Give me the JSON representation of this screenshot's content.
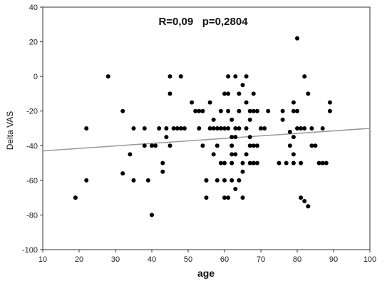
{
  "chart_data": {
    "type": "scatter",
    "title": "",
    "annotation": "R=0,09   p=0,2804",
    "xlabel": "age",
    "ylabel": "Delta VAS",
    "xlim": [
      10,
      100
    ],
    "ylim": [
      -100,
      40
    ],
    "x_ticks": [
      10,
      20,
      30,
      40,
      50,
      60,
      70,
      80,
      90,
      100
    ],
    "y_ticks": [
      40,
      20,
      0,
      -20,
      -40,
      -60,
      -80,
      -100
    ],
    "grid": false,
    "legend": "none",
    "colors": {
      "points": "#000000",
      "trend_line": "#999999",
      "axes": "#333333"
    },
    "trend_line": {
      "x": [
        10,
        100
      ],
      "y": [
        -43,
        -30
      ]
    },
    "series": [
      {
        "x": [
          19,
          22,
          22,
          28,
          32,
          32,
          34,
          35,
          35,
          38,
          38,
          39,
          40,
          40,
          41,
          42,
          43,
          43,
          44,
          44,
          45,
          45,
          45,
          46,
          47,
          48,
          48,
          49,
          51,
          52,
          53,
          53,
          54,
          54,
          55,
          55,
          55,
          56,
          56,
          57,
          57,
          57,
          58,
          58,
          58,
          59,
          59,
          59,
          60,
          60,
          60,
          60,
          60,
          61,
          61,
          61,
          61,
          61,
          62,
          62,
          62,
          62,
          62,
          62,
          63,
          63,
          63,
          63,
          63,
          64,
          64,
          64,
          64,
          65,
          65,
          65,
          65,
          66,
          66,
          66,
          66,
          67,
          67,
          67,
          67,
          67,
          68,
          68,
          68,
          68,
          68,
          69,
          69,
          69,
          70,
          71,
          72,
          75,
          76,
          76,
          77,
          78,
          78,
          79,
          79,
          79,
          79,
          79,
          80,
          80,
          80,
          81,
          81,
          81,
          82,
          82,
          82,
          83,
          83,
          84,
          84,
          85,
          86,
          87,
          87,
          88,
          89,
          89
        ],
        "y": [
          -70,
          -30,
          -60,
          0,
          -20,
          -56,
          -45,
          -60,
          -30,
          -40,
          -30,
          -60,
          -40,
          -80,
          -40,
          -30,
          -55,
          -50,
          -30,
          -35,
          -10,
          -40,
          0,
          -30,
          -30,
          0,
          -30,
          -30,
          -15,
          -20,
          -20,
          -30,
          -40,
          -20,
          -60,
          -60,
          -70,
          -30,
          -15,
          -25,
          -30,
          -45,
          -40,
          -60,
          -30,
          -50,
          -20,
          -30,
          -10,
          -30,
          -50,
          -60,
          -70,
          0,
          -10,
          -20,
          -30,
          -70,
          -25,
          -35,
          -40,
          -45,
          -50,
          -60,
          -30,
          -35,
          -45,
          -65,
          0,
          -10,
          -20,
          -30,
          -60,
          -5,
          -50,
          -55,
          -70,
          0,
          -15,
          -30,
          -45,
          -50,
          -25,
          -35,
          -40,
          -20,
          -50,
          -40,
          -10,
          -20,
          -50,
          -20,
          -40,
          -50,
          -30,
          -30,
          -20,
          -50,
          -25,
          -20,
          -50,
          -32,
          -40,
          -20,
          -35,
          -45,
          -15,
          -50,
          -30,
          22,
          -20,
          -30,
          -50,
          -70,
          -30,
          0,
          -72,
          -10,
          -75,
          -40,
          -30,
          -40,
          -50,
          -30,
          -50,
          -50,
          -20,
          -15
        ]
      }
    ]
  }
}
